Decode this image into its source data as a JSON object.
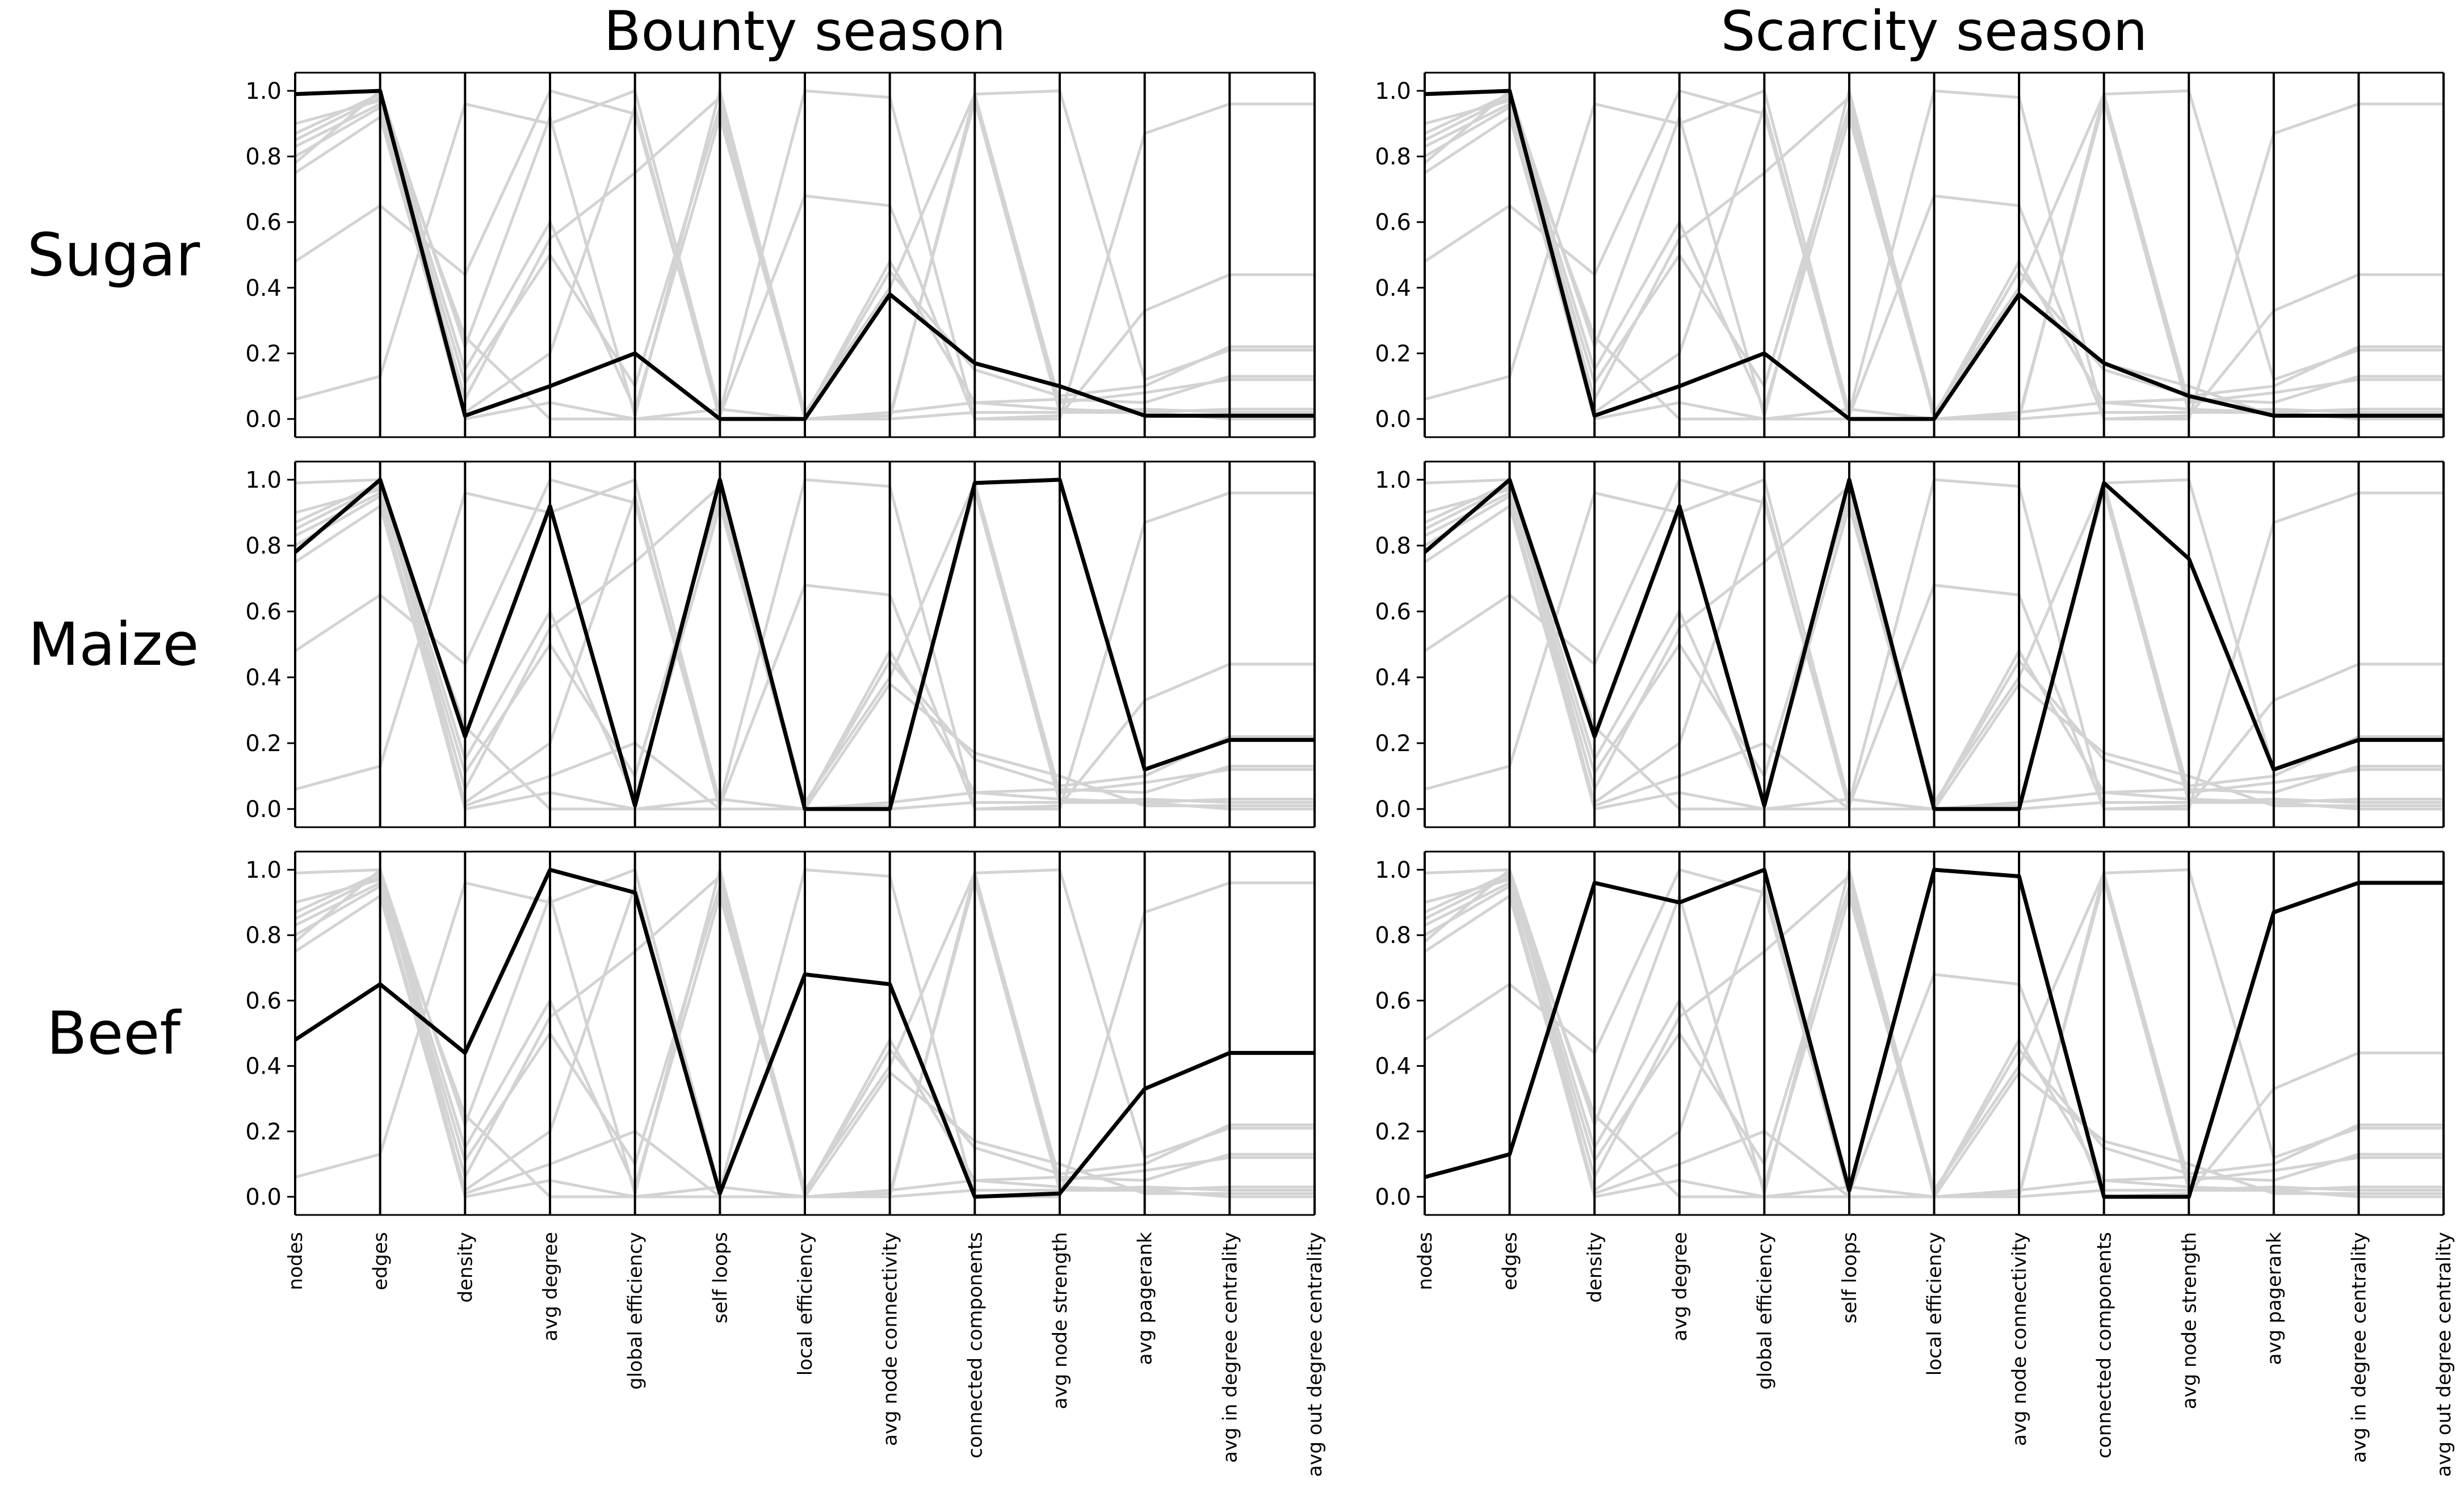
{
  "chart_data": {
    "type": "parallel-coordinates",
    "column_titles": [
      "Bounty season",
      "Scarcity season"
    ],
    "row_labels": [
      "Sugar",
      "Maize",
      "Beef"
    ],
    "axes": [
      "nodes",
      "edges",
      "density",
      "avg degree",
      "global efficiency",
      "self loops",
      "local efficiency",
      "avg node connectivity",
      "connected components",
      "avg node strength",
      "avg pagerank",
      "avg in degree centrality",
      "avg out degree centrality"
    ],
    "ylim": [
      0,
      1
    ],
    "yticks": [
      "0.0",
      "0.2",
      "0.4",
      "0.6",
      "0.8",
      "1.0"
    ],
    "background_color": "#d3d3d3",
    "highlight_color": "#000000",
    "background_lines": [
      [
        0.99,
        1.0,
        0.01,
        0.1,
        0.2,
        0.0,
        0.0,
        0.38,
        0.17,
        0.1,
        0.01,
        0.01,
        0.01
      ],
      [
        0.78,
        1.0,
        0.22,
        0.92,
        0.01,
        1.0,
        0.0,
        0.0,
        0.99,
        1.0,
        0.12,
        0.21,
        0.21
      ],
      [
        0.48,
        0.65,
        0.44,
        1.0,
        0.93,
        0.01,
        0.68,
        0.65,
        0.0,
        0.01,
        0.33,
        0.44,
        0.44
      ],
      [
        0.06,
        0.13,
        0.96,
        0.9,
        1.0,
        0.02,
        1.0,
        0.98,
        0.0,
        0.0,
        0.87,
        0.96,
        0.96
      ],
      [
        0.85,
        0.98,
        0.06,
        0.55,
        0.75,
        0.98,
        0.02,
        0.4,
        0.99,
        0.05,
        0.08,
        0.12,
        0.12
      ],
      [
        0.9,
        0.97,
        0.11,
        0.5,
        0.1,
        0.95,
        0.01,
        0.45,
        0.15,
        0.07,
        0.1,
        0.22,
        0.22
      ],
      [
        0.8,
        0.95,
        0.0,
        0.05,
        0.0,
        0.03,
        0.0,
        0.02,
        0.05,
        0.03,
        0.02,
        0.03,
        0.03
      ],
      [
        0.75,
        0.92,
        0.02,
        0.2,
        0.95,
        0.0,
        0.0,
        0.0,
        0.02,
        0.02,
        0.03,
        0.02,
        0.02
      ],
      [
        0.87,
        0.99,
        0.15,
        0.6,
        0.03,
        0.92,
        0.01,
        0.48,
        0.05,
        0.06,
        0.05,
        0.13,
        0.13
      ],
      [
        0.83,
        0.96,
        0.25,
        0.0,
        0.0,
        0.0,
        0.0,
        0.01,
        0.97,
        0.02,
        0.02,
        0.0,
        0.0
      ]
    ],
    "panels": [
      {
        "row": "Sugar",
        "season": "Bounty season",
        "values": [
          0.99,
          1.0,
          0.01,
          0.1,
          0.2,
          0.0,
          0.0,
          0.38,
          0.17,
          0.1,
          0.01,
          0.01,
          0.01
        ]
      },
      {
        "row": "Sugar",
        "season": "Scarcity season",
        "values": [
          0.99,
          1.0,
          0.01,
          0.1,
          0.2,
          0.0,
          0.0,
          0.38,
          0.17,
          0.07,
          0.01,
          0.01,
          0.01
        ]
      },
      {
        "row": "Maize",
        "season": "Bounty season",
        "values": [
          0.78,
          1.0,
          0.22,
          0.92,
          0.01,
          1.0,
          0.0,
          0.0,
          0.99,
          1.0,
          0.12,
          0.21,
          0.21
        ]
      },
      {
        "row": "Maize",
        "season": "Scarcity season",
        "values": [
          0.78,
          1.0,
          0.22,
          0.92,
          0.01,
          1.0,
          0.0,
          0.0,
          0.99,
          0.76,
          0.12,
          0.21,
          0.21
        ]
      },
      {
        "row": "Beef",
        "season": "Bounty season",
        "values": [
          0.48,
          0.65,
          0.44,
          1.0,
          0.93,
          0.01,
          0.68,
          0.65,
          0.0,
          0.01,
          0.33,
          0.44,
          0.44
        ]
      },
      {
        "row": "Beef",
        "season": "Scarcity season",
        "values": [
          0.06,
          0.13,
          0.96,
          0.9,
          1.0,
          0.02,
          1.0,
          0.98,
          0.0,
          0.0,
          0.87,
          0.96,
          0.96
        ]
      }
    ]
  }
}
